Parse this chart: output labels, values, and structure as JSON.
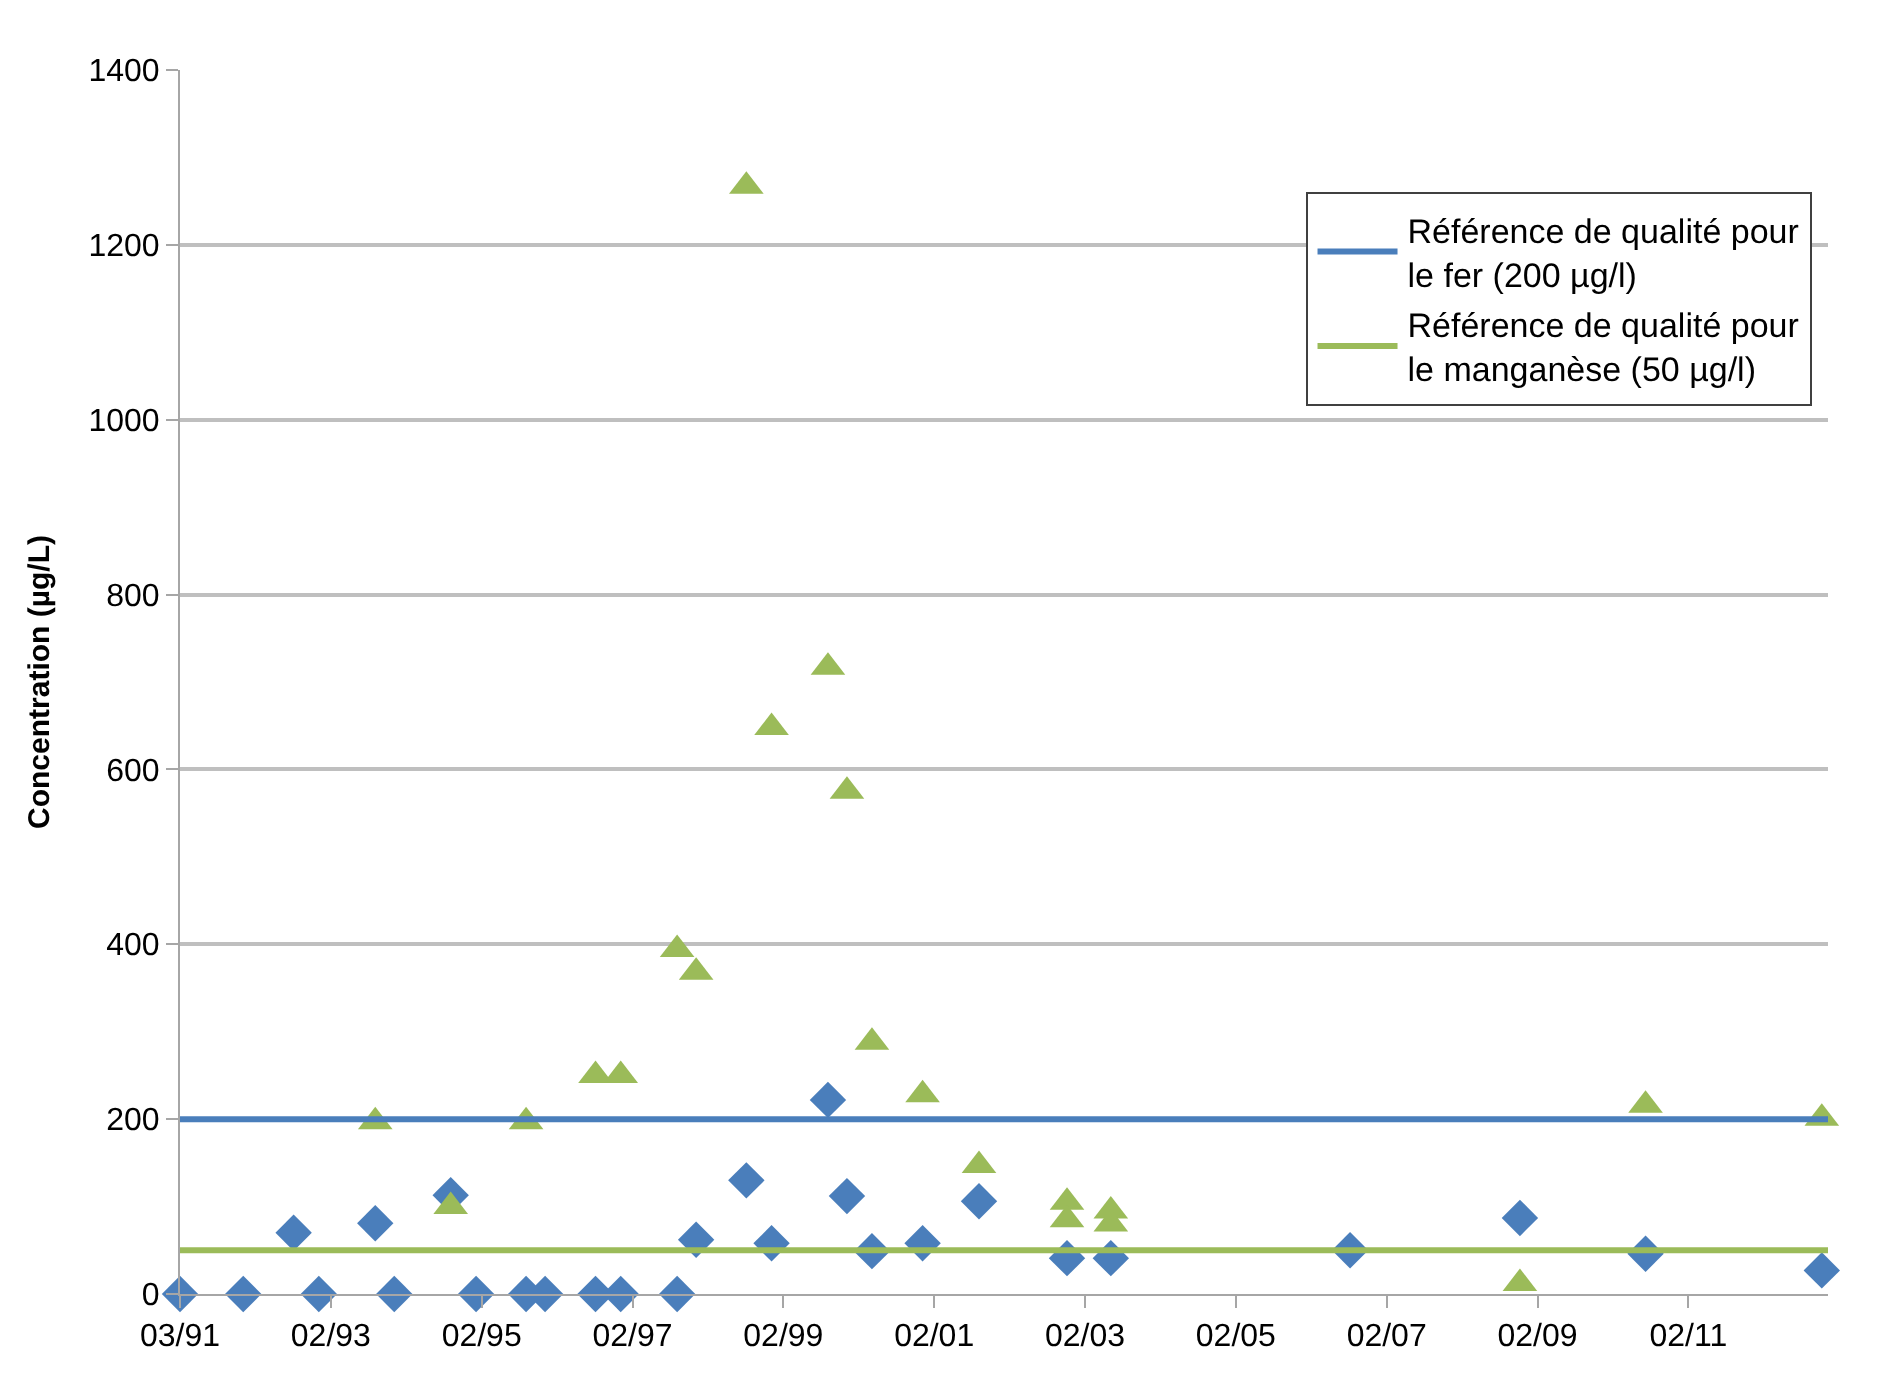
{
  "chart_data": {
    "type": "scatter",
    "ylabel": "Concentration (µg/L)",
    "xlim": [
      "1991-03-01",
      "2012-12-31"
    ],
    "ylim": [
      0,
      1400
    ],
    "yticks": [
      0,
      200,
      400,
      600,
      800,
      1000,
      1200,
      1400
    ],
    "xticks": [
      {
        "value": "1991-03-01",
        "label": "03/91"
      },
      {
        "value": "1993-02-28",
        "label": "02/93"
      },
      {
        "value": "1995-02-28",
        "label": "02/95"
      },
      {
        "value": "1997-02-27",
        "label": "02/97"
      },
      {
        "value": "1999-02-27",
        "label": "02/99"
      },
      {
        "value": "2001-02-26",
        "label": "02/01"
      },
      {
        "value": "2003-02-26",
        "label": "02/03"
      },
      {
        "value": "2005-02-25",
        "label": "02/05"
      },
      {
        "value": "2007-02-25",
        "label": "02/07"
      },
      {
        "value": "2009-02-24",
        "label": "02/09"
      },
      {
        "value": "2011-02-24",
        "label": "02/11"
      }
    ],
    "grid": "y",
    "legend": "top right",
    "series": [
      {
        "type": "line",
        "name": "Référence de qualité pour le fer (200 µg/l)",
        "color": "#4a7ebb",
        "marker": "none",
        "x": [
          "1991-03-01",
          "2012-12-31"
        ],
        "values": [
          200,
          200
        ]
      },
      {
        "type": "line",
        "name": "Référence de qualité pour le manganèse (50 µg/l)",
        "color": "#9bbb59",
        "marker": "none",
        "x": [
          "1991-03-01",
          "2012-12-31"
        ],
        "values": [
          50,
          50
        ]
      },
      {
        "color": "#4a7ebb",
        "marker": "diamond",
        "x": [
          "1991-03",
          "1992-01",
          "1992-09",
          "1993-01",
          "1993-10",
          "1994-01",
          "1994-10",
          "1995-02",
          "1995-10",
          "1996-01",
          "1996-09",
          "1997-01",
          "1997-10",
          "1998-01",
          "1998-09",
          "1999-01",
          "1999-10",
          "2000-01",
          "2000-05",
          "2001-01",
          "2001-10",
          "2002-12",
          "2003-07",
          "2006-09",
          "2008-12",
          "2010-08",
          "2012-12"
        ],
        "values": [
          0,
          0,
          70,
          0,
          81,
          0,
          113,
          0,
          0,
          0,
          0,
          0,
          0,
          62,
          130,
          58,
          222,
          112,
          49,
          58,
          106,
          41,
          41,
          50,
          87,
          46,
          27
        ]
      },
      {
        "color": "#9bbb59",
        "marker": "triangle",
        "x": [
          "1993-10",
          "1994-10",
          "1995-10",
          "1996-09",
          "1997-01",
          "1997-10",
          "1998-01",
          "1998-09",
          "1999-01",
          "1999-10",
          "2000-01",
          "2000-05",
          "2001-01",
          "2001-10",
          "2002-12",
          "2002-12",
          "2003-07",
          "2003-07",
          "2008-12",
          "2010-08",
          "2012-12"
        ],
        "values": [
          197,
          100,
          197,
          250,
          250,
          394,
          368,
          1267,
          648,
          717,
          575,
          288,
          228,
          147,
          105,
          85,
          95,
          80,
          12,
          216,
          201
        ]
      }
    ]
  }
}
